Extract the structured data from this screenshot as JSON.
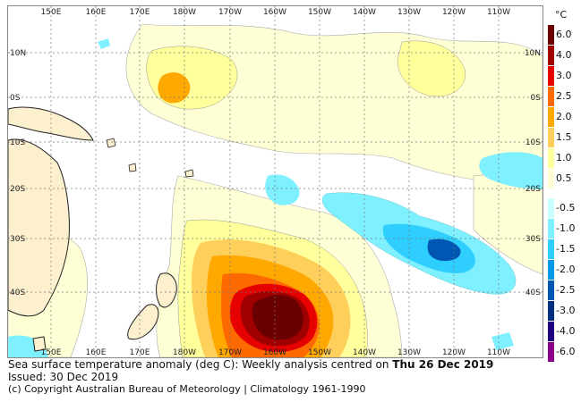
{
  "map": {
    "lon_top_labels": [
      "150E",
      "160E",
      "170E",
      "180W",
      "170W",
      "160W",
      "150W",
      "140W",
      "130W",
      "120W",
      "110W"
    ],
    "lon_bottom_labels": [
      "150E",
      "160E",
      "170E",
      "180W",
      "170W",
      "160W",
      "150W",
      "140W",
      "130W",
      "120W",
      "110W"
    ],
    "lat_left_labels": [
      "10N",
      "0S",
      "10S",
      "20S",
      "30S",
      "40S"
    ],
    "lat_right_labels": [
      "10N",
      "0S",
      "10S",
      "20S",
      "30S",
      "40S"
    ],
    "land_color": "#fdf0cf",
    "grid": true
  },
  "legend": {
    "unit": "°C",
    "levels": [
      {
        "label": "6.0",
        "color": "#6b0000"
      },
      {
        "label": "4.0",
        "color": "#a00000"
      },
      {
        "label": "3.0",
        "color": "#e60000"
      },
      {
        "label": "2.5",
        "color": "#ff6a00"
      },
      {
        "label": "2.0",
        "color": "#ffa800"
      },
      {
        "label": "1.5",
        "color": "#ffcf5c"
      },
      {
        "label": "1.0",
        "color": "#ffff9c"
      },
      {
        "label": "0.5",
        "color": "#ffffd6"
      },
      {
        "label": "-0.5",
        "color": "#c8ffff"
      },
      {
        "label": "-1.0",
        "color": "#7ff0ff"
      },
      {
        "label": "-1.5",
        "color": "#2ecfff"
      },
      {
        "label": "-2.0",
        "color": "#0099e6"
      },
      {
        "label": "-2.5",
        "color": "#0057b3"
      },
      {
        "label": "-3.0",
        "color": "#002e80"
      },
      {
        "label": "-4.0",
        "color": "#1c007d"
      },
      {
        "label": "-6.0",
        "color": "#8a008a"
      }
    ]
  },
  "caption": {
    "line1_prefix": "Sea surface temperature anomaly (deg C): Weekly analysis centred on ",
    "line1_date": "Thu 26 Dec 2019",
    "line2": "Issued: 30 Dec 2019",
    "line3": "(c) Copyright Australian Bureau of Meteorology | Climatology 1961-1990"
  }
}
